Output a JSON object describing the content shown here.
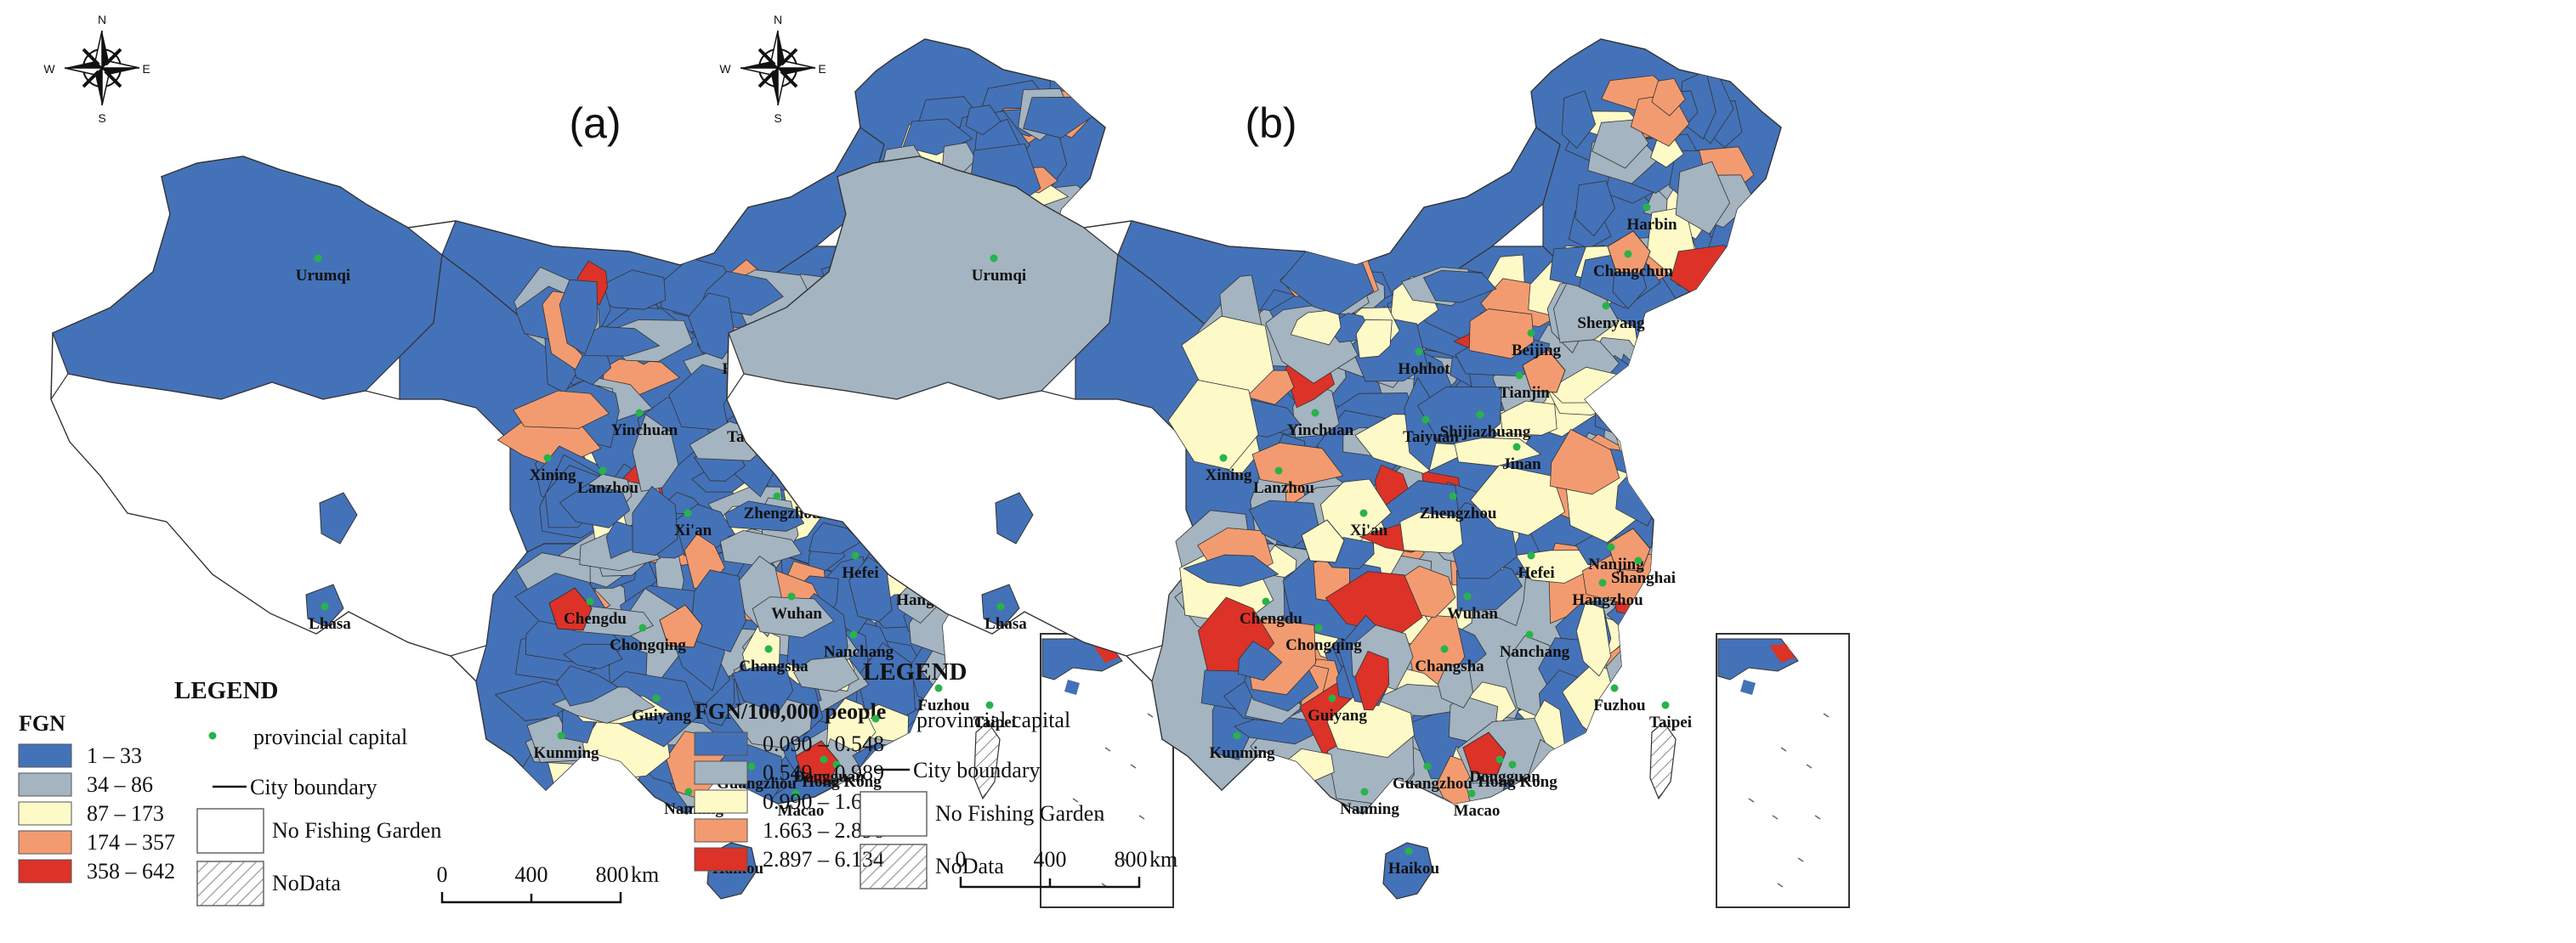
{
  "colors": {
    "c1": "#4472b8",
    "c2": "#a4b4c0",
    "c3": "#fdfac8",
    "c4": "#f39b70",
    "c5": "#dc3228",
    "capital_dot": "#27b34a",
    "boundary": "#333333"
  },
  "compass": {
    "n": "N",
    "s": "S",
    "e": "E",
    "w": "W"
  },
  "cities": [
    {
      "name": "Urumqi"
    },
    {
      "name": "Harbin"
    },
    {
      "name": "Changchun"
    },
    {
      "name": "Shenyang"
    },
    {
      "name": "Beijing"
    },
    {
      "name": "Hohhot"
    },
    {
      "name": "Tianjin"
    },
    {
      "name": "Yinchuan"
    },
    {
      "name": "Taiyuan"
    },
    {
      "name": "Shijiazhuang"
    },
    {
      "name": "Xining"
    },
    {
      "name": "Lanzhou"
    },
    {
      "name": "Jinan"
    },
    {
      "name": "Zhengzhou"
    },
    {
      "name": "Xi'an"
    },
    {
      "name": "Nanjing"
    },
    {
      "name": "Shanghai"
    },
    {
      "name": "Hefei"
    },
    {
      "name": "Chengdu"
    },
    {
      "name": "Wuhan"
    },
    {
      "name": "Hangzhou"
    },
    {
      "name": "Lhasa"
    },
    {
      "name": "Chongqing"
    },
    {
      "name": "Changsha"
    },
    {
      "name": "Nanchang"
    },
    {
      "name": "Fuzhou"
    },
    {
      "name": "Taipei"
    },
    {
      "name": "Guiyang"
    },
    {
      "name": "Kunming"
    },
    {
      "name": "Dongguan"
    },
    {
      "name": "Guangzhou"
    },
    {
      "name": "Hong Kong"
    },
    {
      "name": "Nanning"
    },
    {
      "name": "Macao"
    },
    {
      "name": "Haikou"
    }
  ],
  "panels": [
    {
      "id": "a",
      "label": "(a)",
      "legend": {
        "title": "LEGEND",
        "field": "FGN",
        "classes": [
          "1 – 33",
          "34 – 86",
          "87 – 173",
          "174 – 357",
          "358 – 642"
        ],
        "capital": "provincial capital",
        "boundary": "City boundary",
        "nofishing": "No Fishing Garden",
        "nodata": "NoData"
      },
      "scale": {
        "t0": "0",
        "t1": "400",
        "t2": "800",
        "unit": "km"
      }
    },
    {
      "id": "b",
      "label": "(b)",
      "legend": {
        "title": "LEGEND",
        "field": "FGN/100,000 people",
        "classes": [
          "0.090 – 0.548",
          "0.549 – 0.989",
          "0.990 – 1.662",
          "1.663 – 2.896",
          "2.897 – 6.134"
        ],
        "capital": "provincial capital",
        "boundary": "City boundary",
        "nofishing": "No Fishing Garden",
        "nodata": "NoData"
      },
      "scale": {
        "t0": "0",
        "t1": "400",
        "t2": "800",
        "unit": "km"
      }
    }
  ]
}
